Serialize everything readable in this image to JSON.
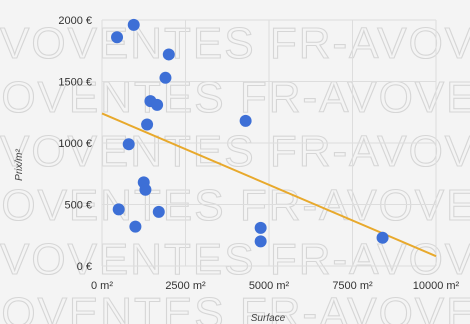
{
  "watermark": {
    "text": "VOVENTES FR-AVOVENTES FR-AVOVENTES"
  },
  "chart_data": {
    "type": "scatter",
    "xlabel": "Surface",
    "ylabel": "Prix/m²",
    "xlim": [
      0,
      10000
    ],
    "ylim": [
      0,
      2000
    ],
    "x_ticks": [
      {
        "value": 0,
        "label": "0 m²"
      },
      {
        "value": 2500,
        "label": "2500 m²"
      },
      {
        "value": 5000,
        "label": "5000 m²"
      },
      {
        "value": 7500,
        "label": "7500 m²"
      },
      {
        "value": 10000,
        "label": "10000 m²"
      }
    ],
    "y_ticks": [
      {
        "value": 0,
        "label": "0 €"
      },
      {
        "value": 500,
        "label": "500 €"
      },
      {
        "value": 1000,
        "label": "1000 €"
      },
      {
        "value": 1500,
        "label": "1500 €"
      },
      {
        "value": 2000,
        "label": "2000 €"
      }
    ],
    "grid": true,
    "points": [
      {
        "x": 450,
        "y": 1860
      },
      {
        "x": 950,
        "y": 1960
      },
      {
        "x": 2000,
        "y": 1720
      },
      {
        "x": 1900,
        "y": 1530
      },
      {
        "x": 1450,
        "y": 1340
      },
      {
        "x": 1650,
        "y": 1310
      },
      {
        "x": 1350,
        "y": 1150
      },
      {
        "x": 800,
        "y": 990
      },
      {
        "x": 4300,
        "y": 1180
      },
      {
        "x": 1250,
        "y": 680
      },
      {
        "x": 1300,
        "y": 620
      },
      {
        "x": 500,
        "y": 460
      },
      {
        "x": 1700,
        "y": 440
      },
      {
        "x": 1000,
        "y": 320
      },
      {
        "x": 4750,
        "y": 310
      },
      {
        "x": 4750,
        "y": 200
      },
      {
        "x": 8400,
        "y": 230
      }
    ],
    "trendline": {
      "x": [
        0,
        10000
      ],
      "y": [
        1240,
        80
      ]
    },
    "colors": {
      "points": "#3d6fd6",
      "trendline": "#e8a92c",
      "grid": "#dddddd",
      "axis": "#bbbbbb"
    }
  }
}
